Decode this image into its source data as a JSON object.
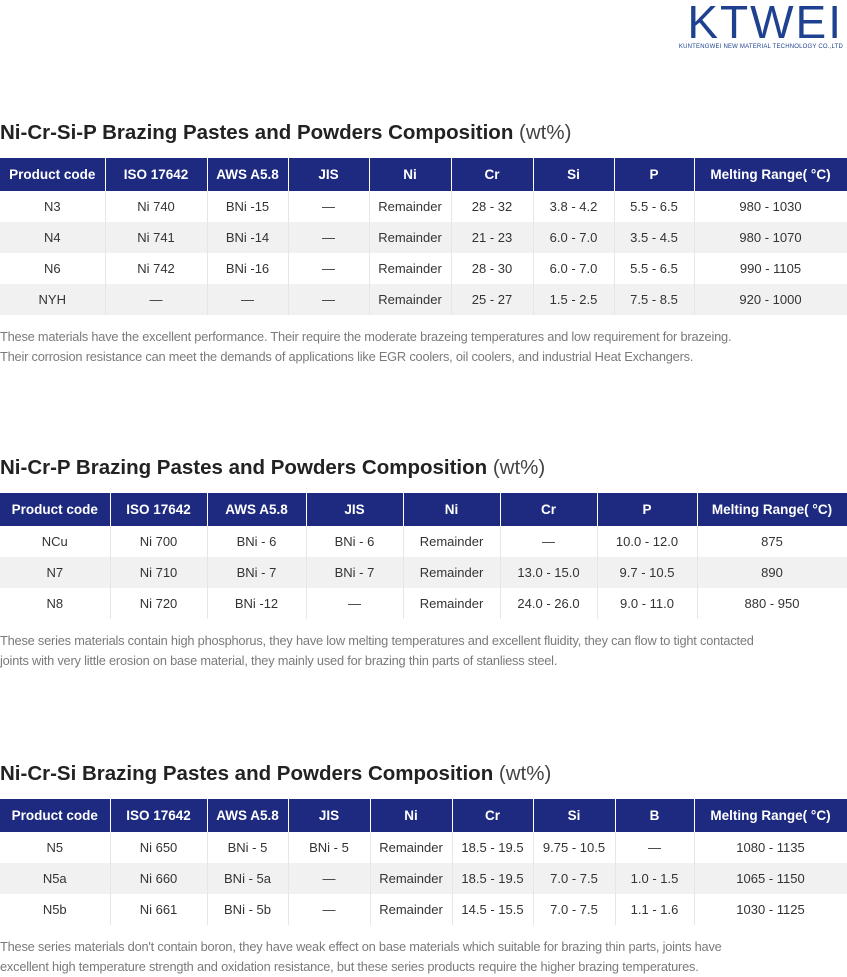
{
  "header": {
    "logo": "KTWEI",
    "tagline": "KUNTENGWEI NEW MATERIAL TECHNOLOGY CO.,LTD"
  },
  "sections": [
    {
      "title": "Ni-Cr-Si-P Brazing Pastes and Powders Composition",
      "title_unit": "(wt%)",
      "table": {
        "headers": [
          "Product code",
          "ISO 17642",
          "AWS A5.8",
          "JIS",
          "Ni",
          "Cr",
          "Si",
          "P",
          "Melting Range( °C)"
        ],
        "rows": [
          [
            "N3",
            "Ni 740",
            "BNi -15",
            "—",
            "Remainder",
            "28 - 32",
            "3.8 - 4.2",
            "5.5 - 6.5",
            "980 - 1030"
          ],
          [
            "N4",
            "Ni 741",
            "BNi -14",
            "—",
            "Remainder",
            "21 - 23",
            "6.0 - 7.0",
            "3.5 - 4.5",
            "980 - 1070"
          ],
          [
            "N6",
            "Ni 742",
            "BNi -16",
            "—",
            "Remainder",
            "28 - 30",
            "6.0 - 7.0",
            "5.5 - 6.5",
            "990 - 1105"
          ],
          [
            "NYH",
            "—",
            "—",
            "—",
            "Remainder",
            "25 - 27",
            "1.5 - 2.5",
            "7.5 - 8.5",
            "920 - 1000"
          ]
        ]
      },
      "description": [
        "These materials have the excellent performance. Their require the moderate brazeing temperatures and low requirement for brazeing.",
        "Their corrosion resistance can meet the demands of applications like EGR coolers, oil coolers, and industrial Heat Exchangers."
      ]
    },
    {
      "title": "Ni-Cr-P Brazing Pastes and Powders Composition",
      "title_unit": "(wt%)",
      "table": {
        "headers": [
          "Product code",
          "ISO 17642",
          "AWS A5.8",
          "JIS",
          "Ni",
          "Cr",
          "P",
          "Melting Range( °C)"
        ],
        "rows": [
          [
            "NCu",
            "Ni 700",
            "BNi - 6",
            "BNi - 6",
            "Remainder",
            "—",
            "10.0 - 12.0",
            "875"
          ],
          [
            "N7",
            "Ni 710",
            "BNi - 7",
            "BNi - 7",
            "Remainder",
            "13.0 - 15.0",
            "9.7 - 10.5",
            "890"
          ],
          [
            "N8",
            "Ni 720",
            "BNi -12",
            "—",
            "Remainder",
            "24.0 - 26.0",
            "9.0 - 11.0",
            "880 - 950"
          ]
        ]
      },
      "description": [
        "These series materials contain high phosphorus, they have low melting temperatures and excellent fluidity, they can flow to tight contacted",
        "joints with very little erosion on base material, they mainly used for brazing thin parts of stanliess steel."
      ]
    },
    {
      "title": "Ni-Cr-Si Brazing Pastes and Powders Composition",
      "title_unit": "(wt%)",
      "table": {
        "headers": [
          "Product code",
          "ISO 17642",
          "AWS A5.8",
          "JIS",
          "Ni",
          "Cr",
          "Si",
          "B",
          "Melting Range( °C)"
        ],
        "rows": [
          [
            "N5",
            "Ni 650",
            "BNi - 5",
            "BNi - 5",
            "Remainder",
            "18.5 - 19.5",
            "9.75 - 10.5",
            "—",
            "1080 - 1135"
          ],
          [
            "N5a",
            "Ni 660",
            "BNi - 5a",
            "—",
            "Remainder",
            "18.5 - 19.5",
            "7.0 - 7.5",
            "1.0 - 1.5",
            "1065 - 1150"
          ],
          [
            "N5b",
            "Ni 661",
            "BNi - 5b",
            "—",
            "Remainder",
            "14.5 - 15.5",
            "7.0 - 7.5",
            "1.1 - 1.6",
            "1030 - 1125"
          ]
        ]
      },
      "description": [
        "These series materials don't contain boron, they have weak effect on base materials which suitable for brazing thin parts, joints have",
        "excellent high temperature strength and oxidation resistance, but these series products require the higher brazing temperatures."
      ]
    }
  ]
}
